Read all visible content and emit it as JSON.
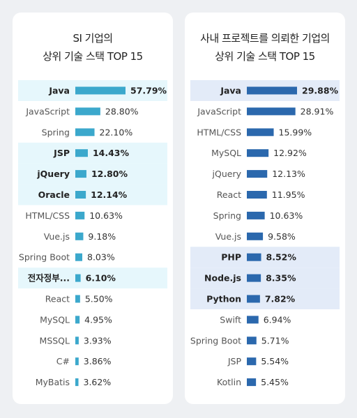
{
  "chart_data": [
    {
      "type": "bar",
      "orientation": "horizontal",
      "title": [
        "SI 기업의",
        "상위 기술 스택 TOP 15"
      ],
      "categories": [
        "Java",
        "JavaScript",
        "Spring",
        "JSP",
        "jQuery",
        "Oracle",
        "HTML/CSS",
        "Vue.js",
        "Spring Boot",
        "전자정부...",
        "React",
        "MySQL",
        "MSSQL",
        "C#",
        "MyBatis"
      ],
      "values": [
        57.79,
        28.8,
        22.1,
        14.43,
        12.8,
        12.14,
        10.63,
        9.18,
        8.03,
        6.1,
        5.5,
        4.95,
        3.93,
        3.86,
        3.62
      ],
      "value_labels": [
        "57.79%",
        "28.80%",
        "22.10%",
        "14.43%",
        "12.80%",
        "12.14%",
        "10.63%",
        "9.18%",
        "8.03%",
        "6.10%",
        "5.50%",
        "4.95%",
        "3.93%",
        "3.86%",
        "3.62%"
      ],
      "highlighted": [
        true,
        false,
        false,
        true,
        true,
        true,
        false,
        false,
        false,
        true,
        false,
        false,
        false,
        false,
        false
      ],
      "xlim": [
        0,
        57.79
      ],
      "grid": false,
      "colors": {
        "bar": "#3ba8cc",
        "highlight_bg": "#e6f7fc",
        "label": "#555555",
        "label_bold": "#222222"
      }
    },
    {
      "type": "bar",
      "orientation": "horizontal",
      "title": [
        "사내 프로젝트를 의뢰한 기업의",
        "상위 기술 스택 TOP 15"
      ],
      "categories": [
        "Java",
        "JavaScript",
        "HTML/CSS",
        "MySQL",
        "jQuery",
        "React",
        "Spring",
        "Vue.js",
        "PHP",
        "Node.js",
        "Python",
        "Swift",
        "Spring Boot",
        "JSP",
        "Kotlin"
      ],
      "values": [
        29.88,
        28.91,
        15.99,
        12.92,
        12.13,
        11.95,
        10.63,
        9.58,
        8.52,
        8.35,
        7.82,
        6.94,
        5.71,
        5.54,
        5.45
      ],
      "value_labels": [
        "29.88%",
        "28.91%",
        "15.99%",
        "12.92%",
        "12.13%",
        "11.95%",
        "10.63%",
        "9.58%",
        "8.52%",
        "8.35%",
        "7.82%",
        "6.94%",
        "5.71%",
        "5.54%",
        "5.45%"
      ],
      "highlighted": [
        true,
        false,
        false,
        false,
        false,
        false,
        false,
        false,
        true,
        true,
        true,
        false,
        false,
        false,
        false
      ],
      "xlim": [
        0,
        29.88
      ],
      "grid": false,
      "colors": {
        "bar": "#2b68ad",
        "highlight_bg": "#e3ebf8",
        "label": "#555555",
        "label_bold": "#222222"
      }
    }
  ]
}
